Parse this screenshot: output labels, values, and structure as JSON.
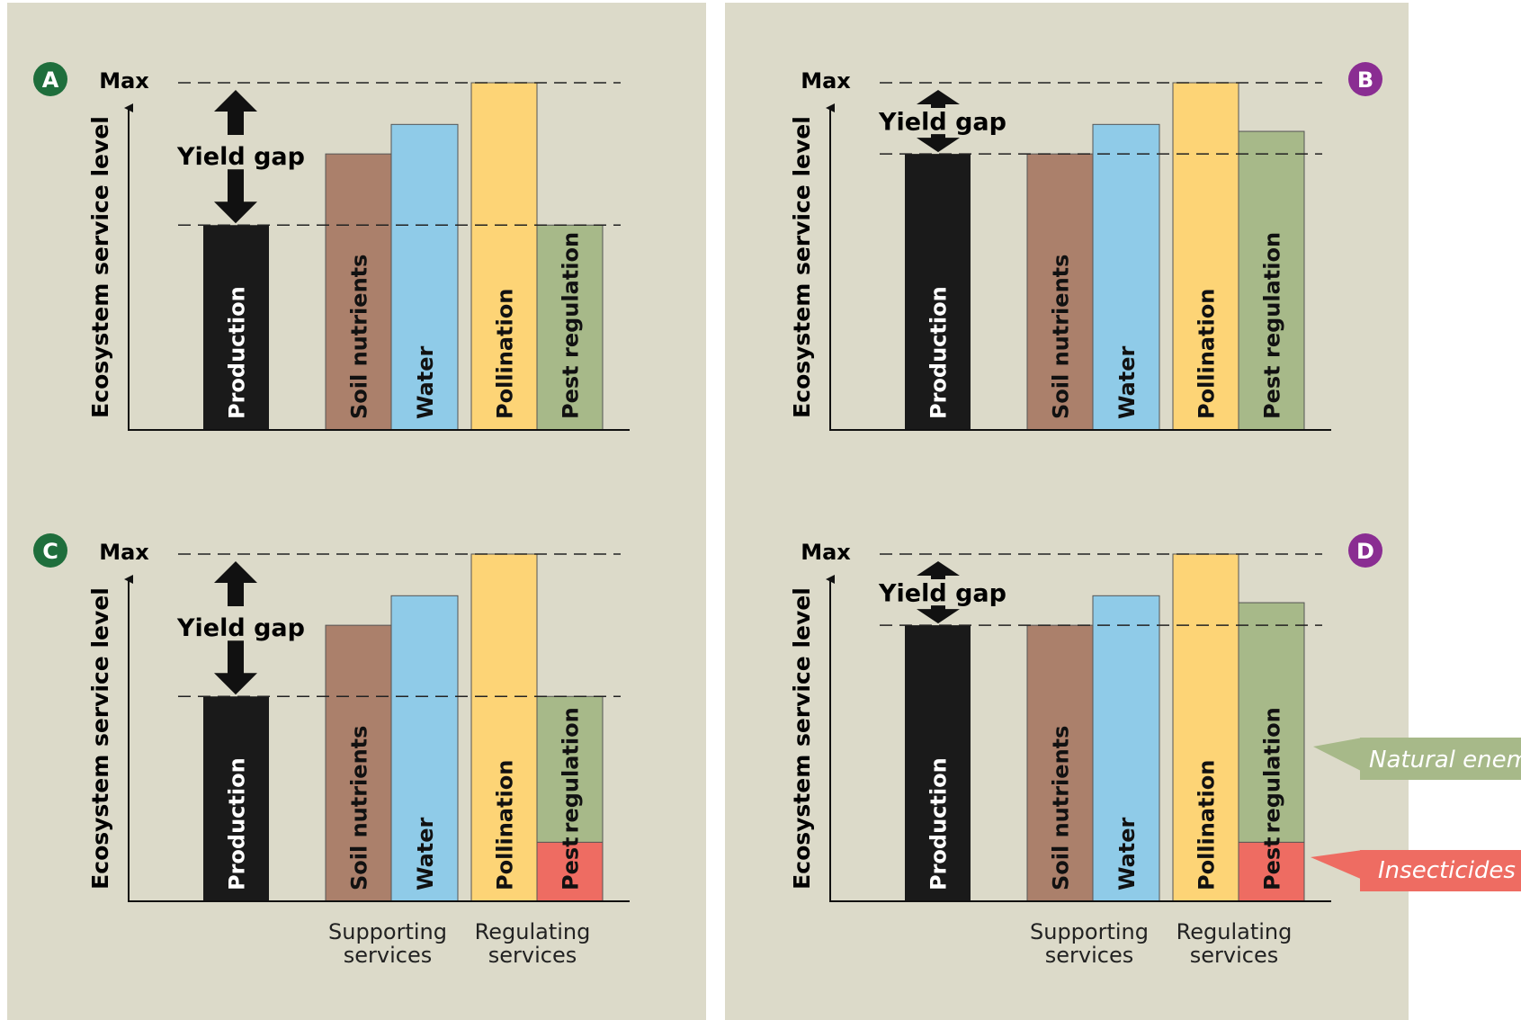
{
  "colors": {
    "background": "#dcdac9",
    "production": "#1a1a1a",
    "soil": "#ab806b",
    "water": "#8fcbe8",
    "pollination": "#fdd476",
    "pest": "#a7b989",
    "insecticide": "#ee6c62",
    "badge_green": "#1f6e3c",
    "badge_purple": "#8a2d92",
    "arrow": "#111111"
  },
  "labels": {
    "y_axis": "Ecosystem service level",
    "max": "Max",
    "yield_gap": "Yield gap",
    "production": "Production",
    "soil": "Soil nutrients",
    "water": "Water",
    "pollination": "Pollination",
    "pest_regulation": "Pest regulation",
    "pest": "Pest",
    "regulation": "regulation",
    "supporting_1": "Supporting",
    "supporting_2": "services",
    "regulating_1": "Regulating",
    "regulating_2": "services",
    "natural_enemies": "Natural enemies",
    "insecticides": "Insecticides"
  },
  "panels": [
    {
      "letter": "A",
      "badge": "green",
      "levels": {
        "production": 0.59,
        "soil": 0.795,
        "water": 0.88,
        "pollination": 1.0,
        "pest": 0.59
      }
    },
    {
      "letter": "B",
      "badge": "purple",
      "levels": {
        "production": 0.795,
        "soil": 0.795,
        "water": 0.88,
        "pollination": 1.0,
        "pest": 0.86
      }
    },
    {
      "letter": "C",
      "badge": "green",
      "levels": {
        "production": 0.59,
        "soil": 0.795,
        "water": 0.88,
        "pollination": 1.0,
        "pest": 0.59,
        "insecticide": 0.17
      }
    },
    {
      "letter": "D",
      "badge": "purple",
      "levels": {
        "production": 0.795,
        "soil": 0.795,
        "water": 0.88,
        "pollination": 1.0,
        "pest": 0.86,
        "insecticide": 0.17
      }
    }
  ]
}
